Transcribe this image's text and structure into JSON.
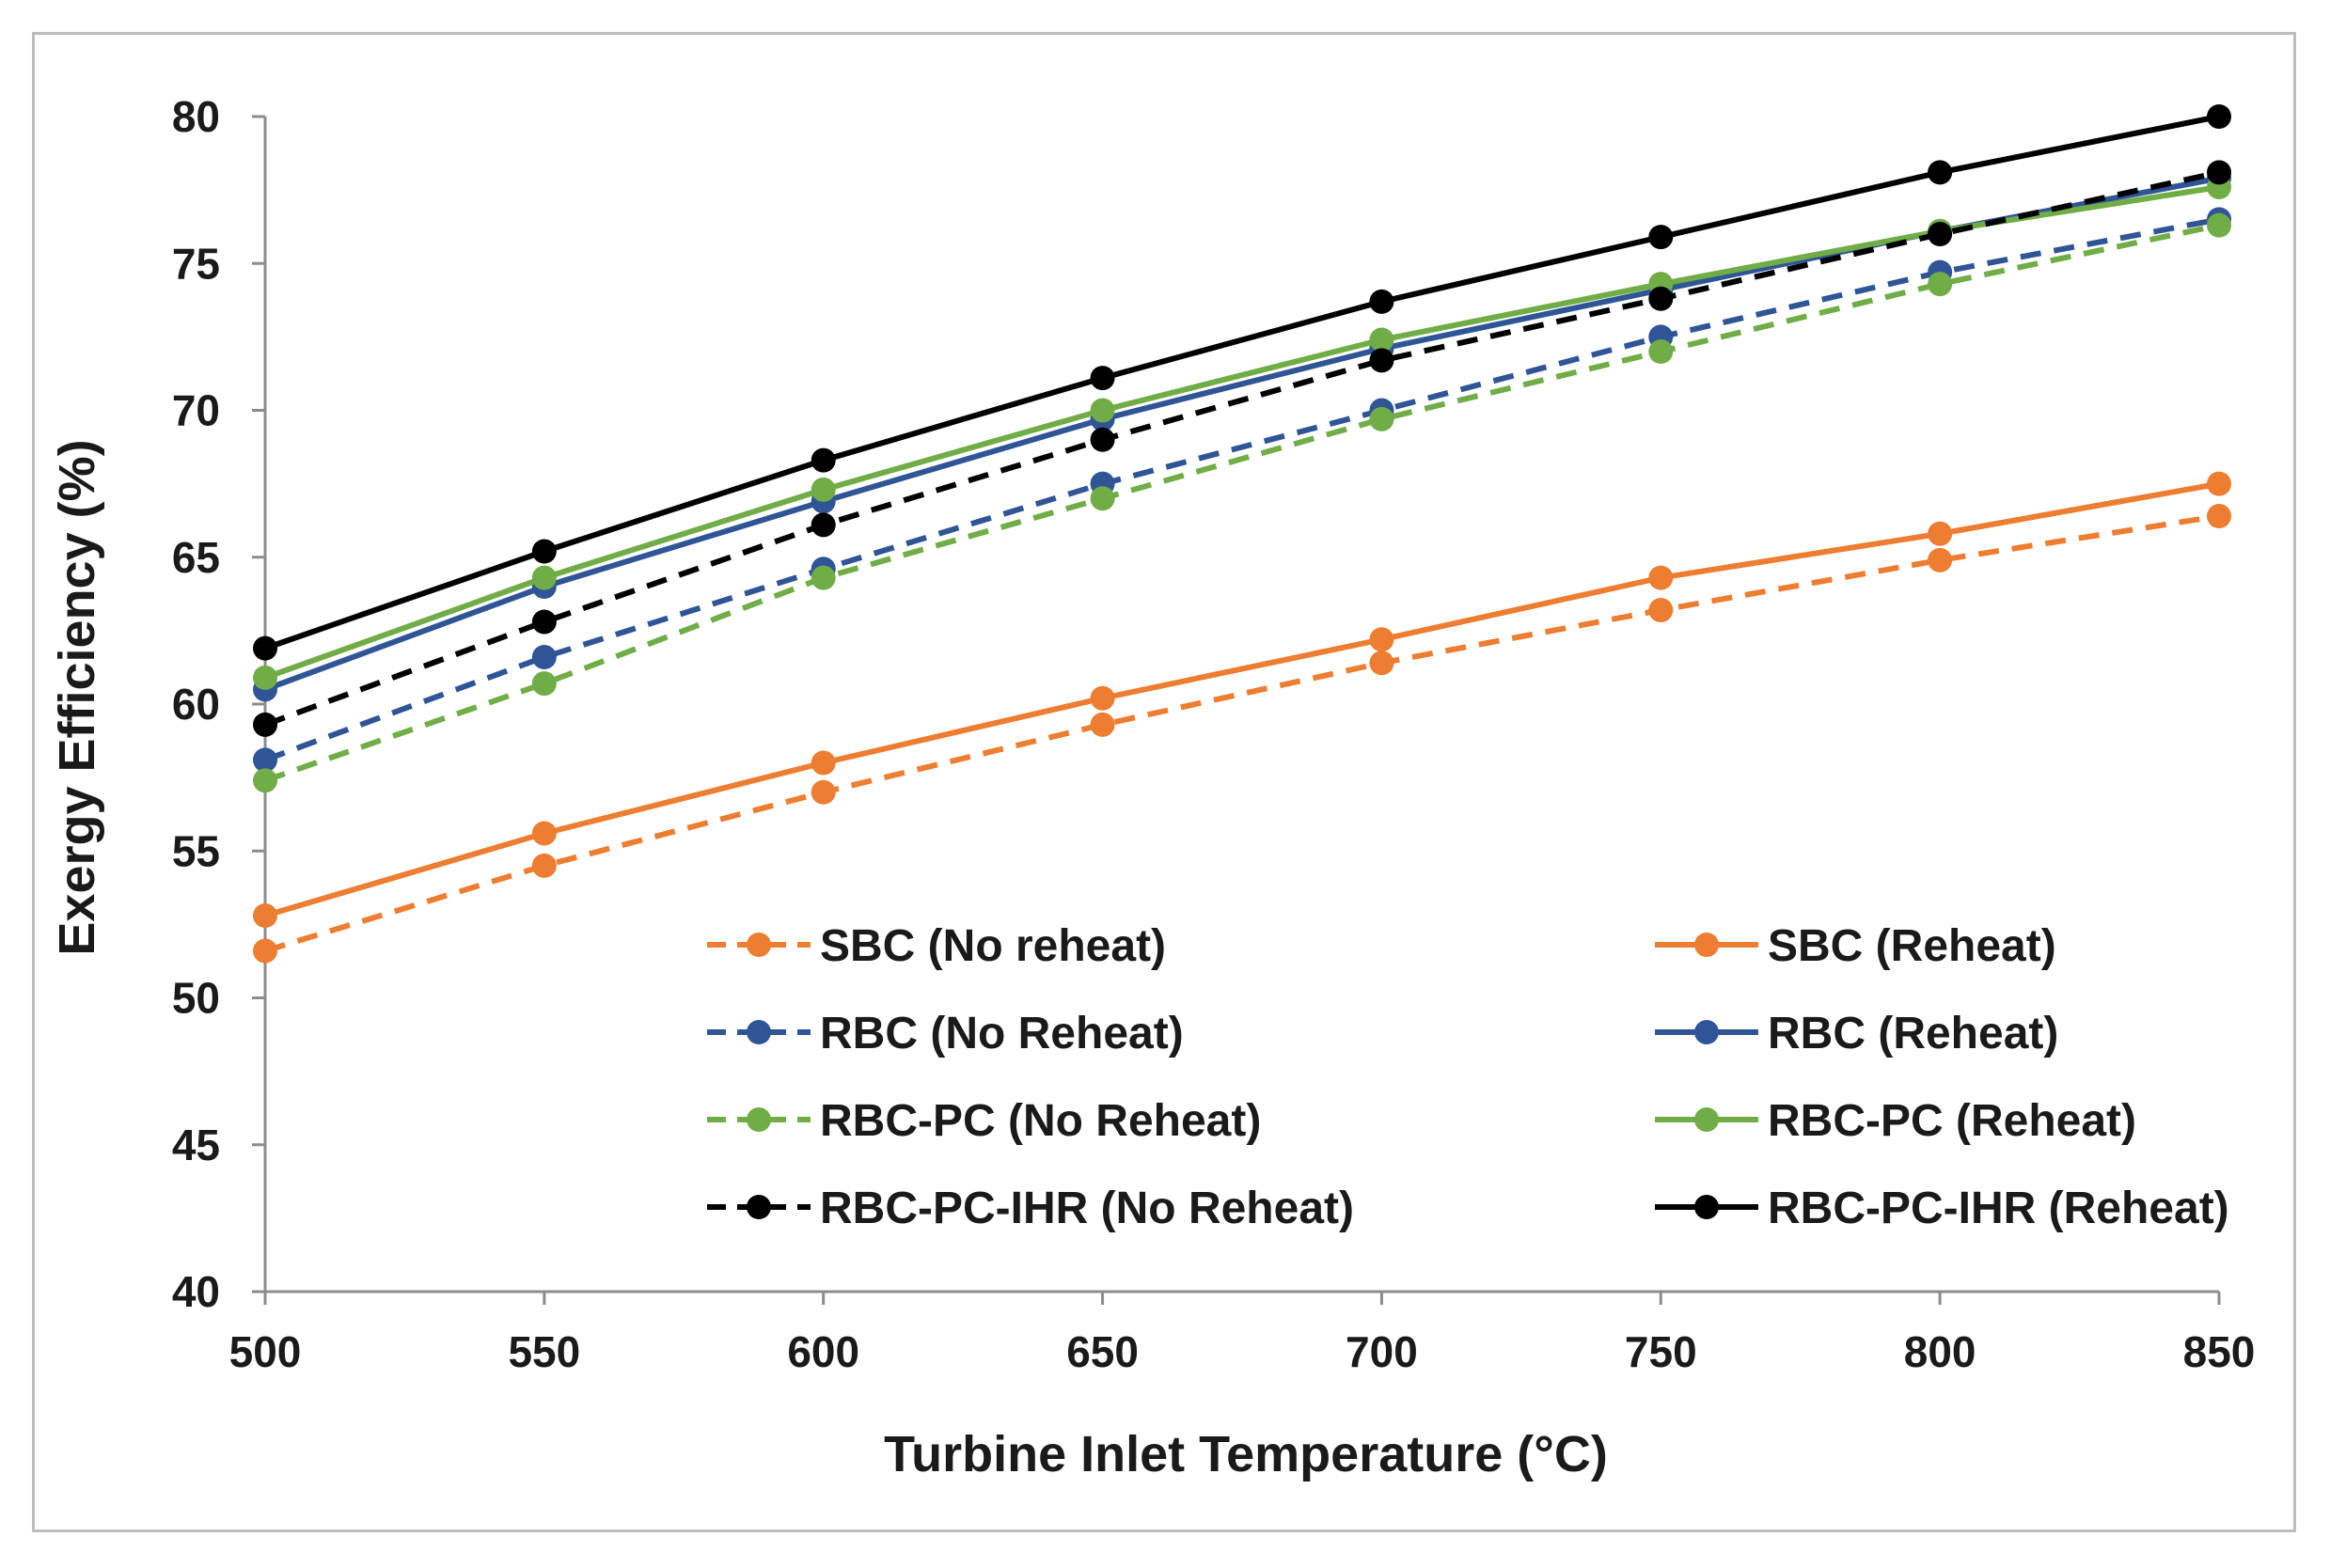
{
  "chart_data": {
    "type": "line",
    "title": "",
    "xlabel": "Turbine Inlet Temperature (°C)",
    "ylabel": "Exergy Efficiency (%)",
    "x": [
      500,
      550,
      600,
      650,
      700,
      750,
      800,
      850
    ],
    "xticks": [
      "500",
      "550",
      "600",
      "650",
      "700",
      "750",
      "800",
      "850"
    ],
    "yticks": [
      "40",
      "45",
      "50",
      "55",
      "60",
      "65",
      "70",
      "75",
      "80"
    ],
    "xlim": [
      500,
      850
    ],
    "ylim": [
      40,
      80
    ],
    "grid": false,
    "legend_position": "bottom-center",
    "series": [
      {
        "name": "SBC (No reheat)",
        "color": "#ED7D31",
        "dash": true,
        "values": [
          51.6,
          54.5,
          57.0,
          59.3,
          61.4,
          63.2,
          64.9,
          66.4
        ]
      },
      {
        "name": "SBC (Reheat)",
        "color": "#ED7D31",
        "dash": false,
        "values": [
          52.8,
          55.6,
          58.0,
          60.2,
          62.2,
          64.3,
          65.8,
          67.5
        ]
      },
      {
        "name": "RBC (No Reheat)",
        "color": "#2F5597",
        "dash": true,
        "values": [
          58.1,
          61.6,
          64.6,
          67.5,
          70.0,
          72.5,
          74.7,
          76.5
        ]
      },
      {
        "name": "RBC (Reheat)",
        "color": "#2F5597",
        "dash": false,
        "values": [
          60.5,
          64.0,
          66.9,
          69.7,
          72.1,
          74.1,
          76.1,
          77.9
        ]
      },
      {
        "name": "RBC-PC (No Reheat)",
        "color": "#70AD47",
        "dash": true,
        "values": [
          57.4,
          60.7,
          64.3,
          67.0,
          69.7,
          72.0,
          74.3,
          76.3
        ]
      },
      {
        "name": "RBC-PC (Reheat)",
        "color": "#70AD47",
        "dash": false,
        "values": [
          60.9,
          64.3,
          67.3,
          70.0,
          72.4,
          74.3,
          76.1,
          77.6
        ]
      },
      {
        "name": "RBC-PC-IHR (No Reheat)",
        "color": "#000000",
        "dash": true,
        "values": [
          59.3,
          62.8,
          66.1,
          69.0,
          71.7,
          73.8,
          76.0,
          78.1
        ]
      },
      {
        "name": "RBC-PC-IHR (Reheat)",
        "color": "#000000",
        "dash": false,
        "values": [
          61.9,
          65.2,
          68.3,
          71.1,
          73.7,
          75.9,
          78.1,
          80.0
        ]
      }
    ]
  }
}
